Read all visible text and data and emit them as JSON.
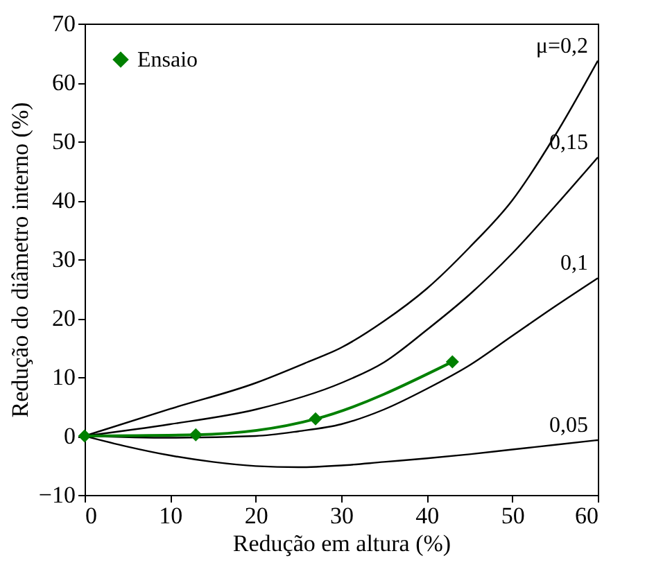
{
  "chart_data": {
    "type": "line",
    "xlabel": "Redução em altura (%)",
    "ylabel": "Redução do diâmetro interno (%)",
    "xlim": [
      0,
      60
    ],
    "xticks": [
      0,
      10,
      20,
      30,
      40,
      50,
      60
    ],
    "ylim": [
      -10,
      70
    ],
    "yticks": [
      -10,
      0,
      10,
      20,
      30,
      40,
      50,
      60,
      70
    ],
    "grid": false,
    "legend": "top left",
    "line_style": "solid",
    "series": [
      {
        "name": "μ=0,2",
        "color": "#000000",
        "marker": "none",
        "x": [
          0,
          10,
          20,
          26,
          30,
          35,
          40,
          45,
          50,
          55,
          60
        ],
        "values": [
          0,
          4.6,
          9,
          12.5,
          15,
          19.5,
          25,
          32,
          40,
          51,
          63.7
        ]
      },
      {
        "name": "0,15",
        "color": "#000000",
        "marker": "none",
        "x": [
          0,
          10,
          20,
          30,
          35,
          40,
          45,
          50,
          55,
          60
        ],
        "values": [
          0,
          2,
          4.5,
          9,
          12.5,
          18,
          24,
          31,
          39,
          47.3
        ]
      },
      {
        "name": "0,1",
        "color": "#000000",
        "marker": "none",
        "x": [
          0,
          10,
          20,
          25,
          30,
          35,
          40,
          45,
          50,
          55,
          60
        ],
        "values": [
          0,
          -0.3,
          0,
          0.8,
          2,
          4.5,
          8,
          12,
          17,
          22,
          26.8
        ]
      },
      {
        "name": "0,05",
        "color": "#000000",
        "marker": "none",
        "x": [
          0,
          5,
          10,
          15,
          20,
          25,
          30,
          35,
          40,
          45,
          50,
          55,
          60
        ],
        "values": [
          0,
          -1.8,
          -3.3,
          -4.4,
          -5.1,
          -5.3,
          -5,
          -4.4,
          -3.8,
          -3.1,
          -2.3,
          -1.5,
          -0.7
        ]
      },
      {
        "name": "Ensaio",
        "color": "#008000",
        "marker": "diamond",
        "x": [
          0,
          13,
          27,
          43
        ],
        "values": [
          0,
          0.2,
          2.9,
          12.6
        ]
      }
    ]
  }
}
